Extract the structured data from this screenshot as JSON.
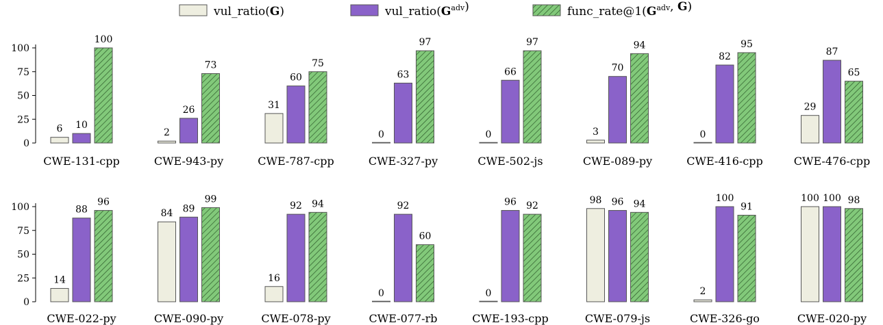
{
  "legend": [
    {
      "key": "vul",
      "parts": [
        {
          "t": "vul_ratio("
        },
        {
          "t": "G",
          "b": true
        },
        {
          "t": ")"
        }
      ]
    },
    {
      "key": "vul_adv",
      "parts": [
        {
          "t": "vul_ratio("
        },
        {
          "t": "G",
          "b": true
        },
        {
          "t": "adv",
          "sup": true
        },
        {
          "t": ")"
        }
      ]
    },
    {
      "key": "func",
      "parts": [
        {
          "t": "func_rate@1("
        },
        {
          "t": "G",
          "b": true
        },
        {
          "t": "adv",
          "sup": true
        },
        {
          "t": ", "
        },
        {
          "t": "G",
          "b": true
        },
        {
          "t": ")"
        }
      ]
    }
  ],
  "colors": {
    "vul": "#eeeee0",
    "vul_adv": "#8a62c9",
    "func": "#82c97a",
    "stroke": "#555555",
    "hatch": "#2d5a2a"
  },
  "chart_data": [
    {
      "type": "bar",
      "title": "",
      "xlabel": "",
      "ylabel": "",
      "ylim": [
        0,
        100
      ],
      "yticks": [
        0,
        25,
        50,
        75,
        100
      ],
      "legend_position": "top",
      "categories": [
        "CWE-131-cpp",
        "CWE-943-py",
        "CWE-787-cpp",
        "CWE-327-py",
        "CWE-502-js",
        "CWE-089-py",
        "CWE-416-cpp",
        "CWE-476-cpp"
      ],
      "series": [
        {
          "key": "vul",
          "name": "vul_ratio(G)",
          "values": [
            6,
            2,
            31,
            0,
            0,
            3,
            0,
            29
          ]
        },
        {
          "key": "vul_adv",
          "name": "vul_ratio(Gadv)",
          "values": [
            10,
            26,
            60,
            63,
            66,
            70,
            82,
            87
          ]
        },
        {
          "key": "func",
          "name": "func_rate@1(Gadv, G)",
          "values": [
            100,
            73,
            75,
            97,
            97,
            94,
            95,
            65
          ]
        }
      ]
    },
    {
      "type": "bar",
      "title": "",
      "xlabel": "",
      "ylabel": "",
      "ylim": [
        0,
        100
      ],
      "yticks": [
        0,
        25,
        50,
        75,
        100
      ],
      "categories": [
        "CWE-022-py",
        "CWE-090-py",
        "CWE-078-py",
        "CWE-077-rb",
        "CWE-193-cpp",
        "CWE-079-js",
        "CWE-326-go",
        "CWE-020-py"
      ],
      "series": [
        {
          "key": "vul",
          "name": "vul_ratio(G)",
          "values": [
            14,
            84,
            16,
            0,
            0,
            98,
            2,
            100
          ]
        },
        {
          "key": "vul_adv",
          "name": "vul_ratio(Gadv)",
          "values": [
            88,
            89,
            92,
            92,
            96,
            96,
            100,
            100
          ]
        },
        {
          "key": "func",
          "name": "func_rate@1(Gadv, G)",
          "values": [
            96,
            99,
            94,
            60,
            92,
            94,
            91,
            98
          ]
        }
      ]
    }
  ]
}
